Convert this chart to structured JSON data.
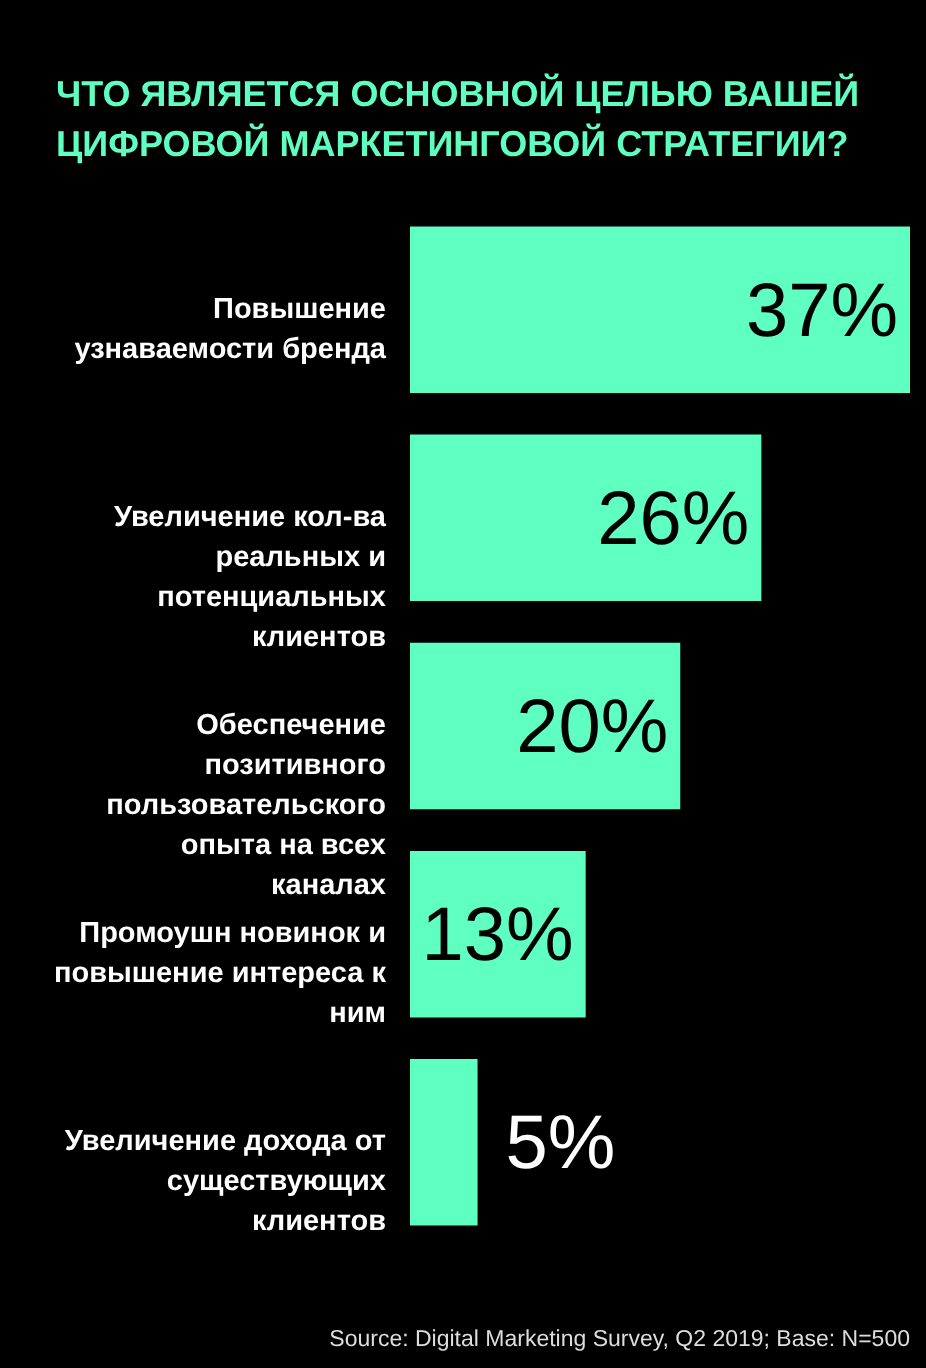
{
  "chart_data": {
    "type": "bar",
    "orientation": "horizontal",
    "title": "ЧТО ЯВЛЯЕТСЯ ОСНОВНОЙ ЦЕЛЬЮ ВАШЕЙ ЦИФРОВОЙ МАРКЕТИНГОВОЙ СТРАТЕГИИ?",
    "categories": [
      "Повышение узнаваемости бренда",
      "Увеличение кол-ва реальных и потенциальных клиентов",
      "Обеспечение позитивного пользовательского опыта на всех каналах",
      "Промоушн новинок и повышение интереса к ним",
      "Увеличение дохода от существующих клиентов"
    ],
    "values": [
      37,
      26,
      20,
      13,
      5
    ],
    "value_labels": [
      "37%",
      "26%",
      "20%",
      "13%",
      "5%"
    ],
    "color": "#5effc0",
    "annotations": [
      "Source: Digital Marketing Survey, Q2 2019; Base: N=500"
    ]
  }
}
